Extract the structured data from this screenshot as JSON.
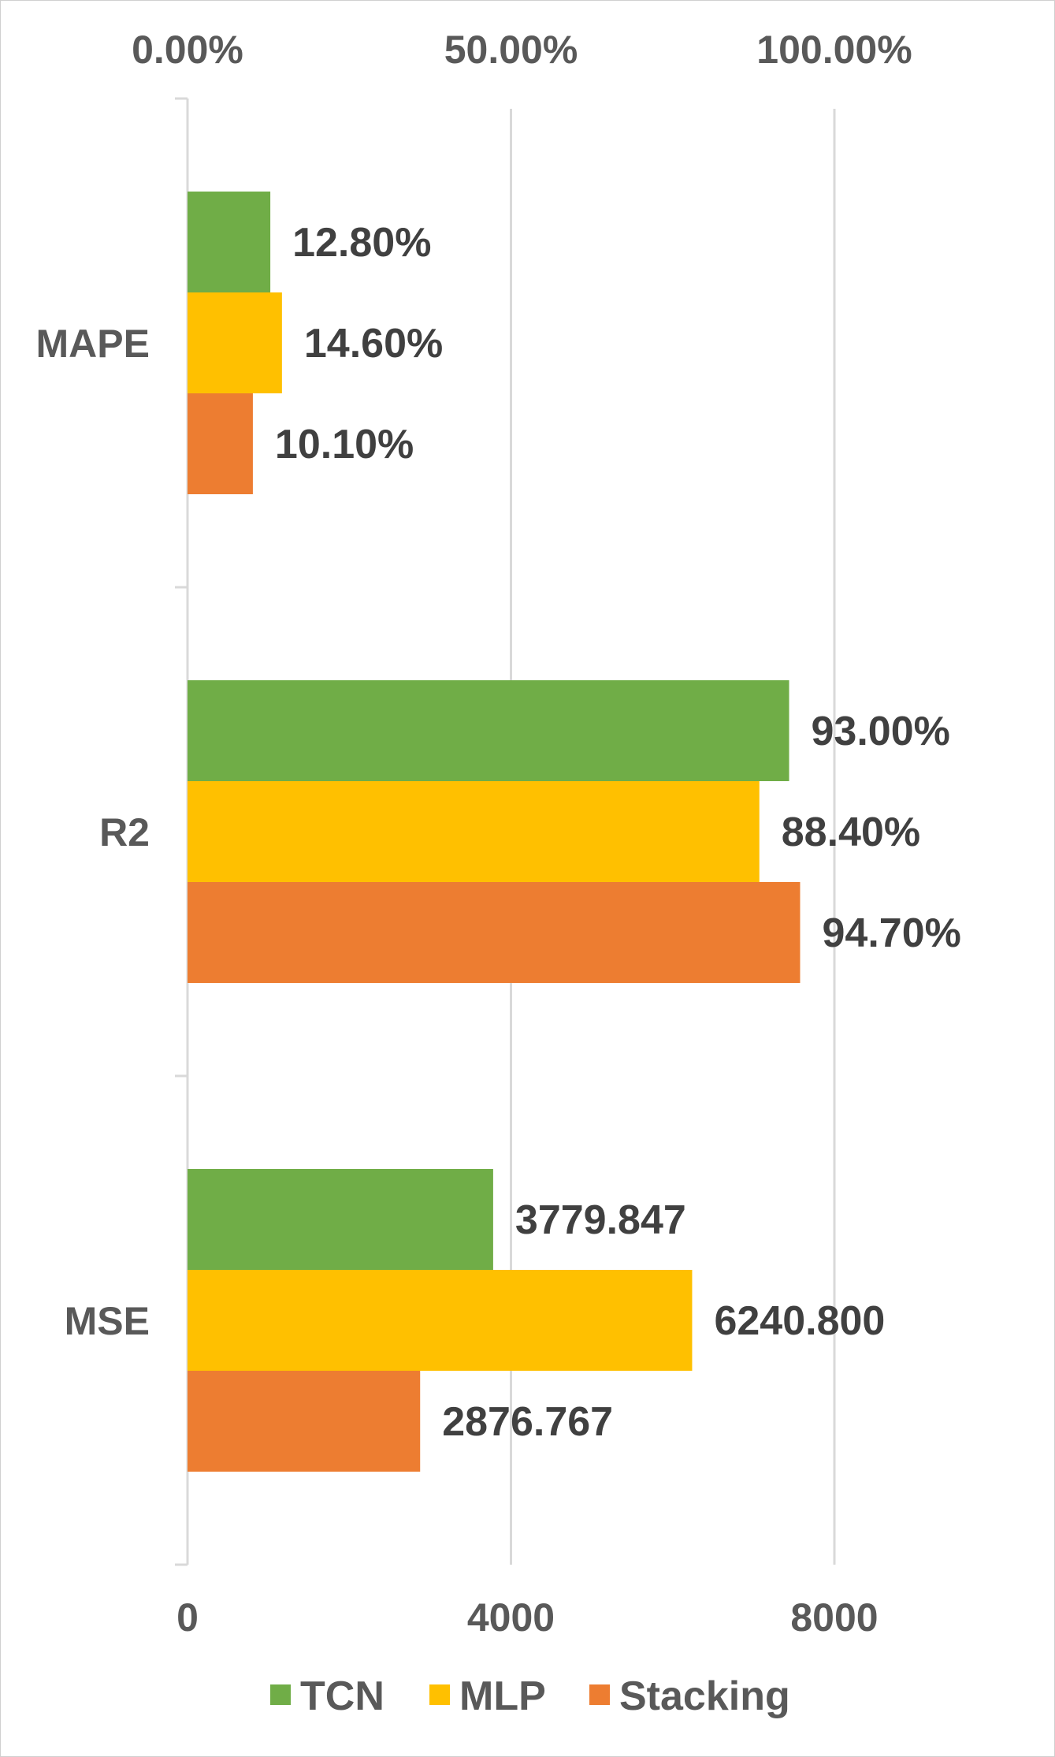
{
  "chart_data": {
    "type": "bar",
    "orientation": "horizontal",
    "title": "",
    "categories": [
      "MAPE",
      "R2",
      "MSE"
    ],
    "top_axis": {
      "label": "",
      "range": [
        0,
        1.0
      ],
      "ticks": [
        0,
        0.5,
        1.0
      ],
      "tick_labels": [
        "0.00%",
        "50.00%",
        "100.00%"
      ],
      "applies_to": [
        "MAPE",
        "R2"
      ]
    },
    "bottom_axis": {
      "label": "",
      "range": [
        0,
        8000
      ],
      "ticks": [
        0,
        4000,
        8000
      ],
      "tick_labels": [
        "0",
        "4000",
        "8000"
      ],
      "applies_to": [
        "MSE"
      ]
    },
    "grid": true,
    "legend_position": "bottom",
    "series": [
      {
        "name": "TCN",
        "color": "#70AD47",
        "values": [
          0.128,
          0.93,
          3779.847
        ],
        "labels": [
          "12.80%",
          "93.00%",
          "3779.847"
        ]
      },
      {
        "name": "MLP",
        "color": "#FFC000",
        "values": [
          0.146,
          0.884,
          6240.8
        ],
        "labels": [
          "14.60%",
          "88.40%",
          "6240.800"
        ]
      },
      {
        "name": "Stacking",
        "color": "#ED7D31",
        "values": [
          0.101,
          0.947,
          2876.767
        ],
        "labels": [
          "10.10%",
          "94.70%",
          "2876.767"
        ]
      }
    ]
  }
}
